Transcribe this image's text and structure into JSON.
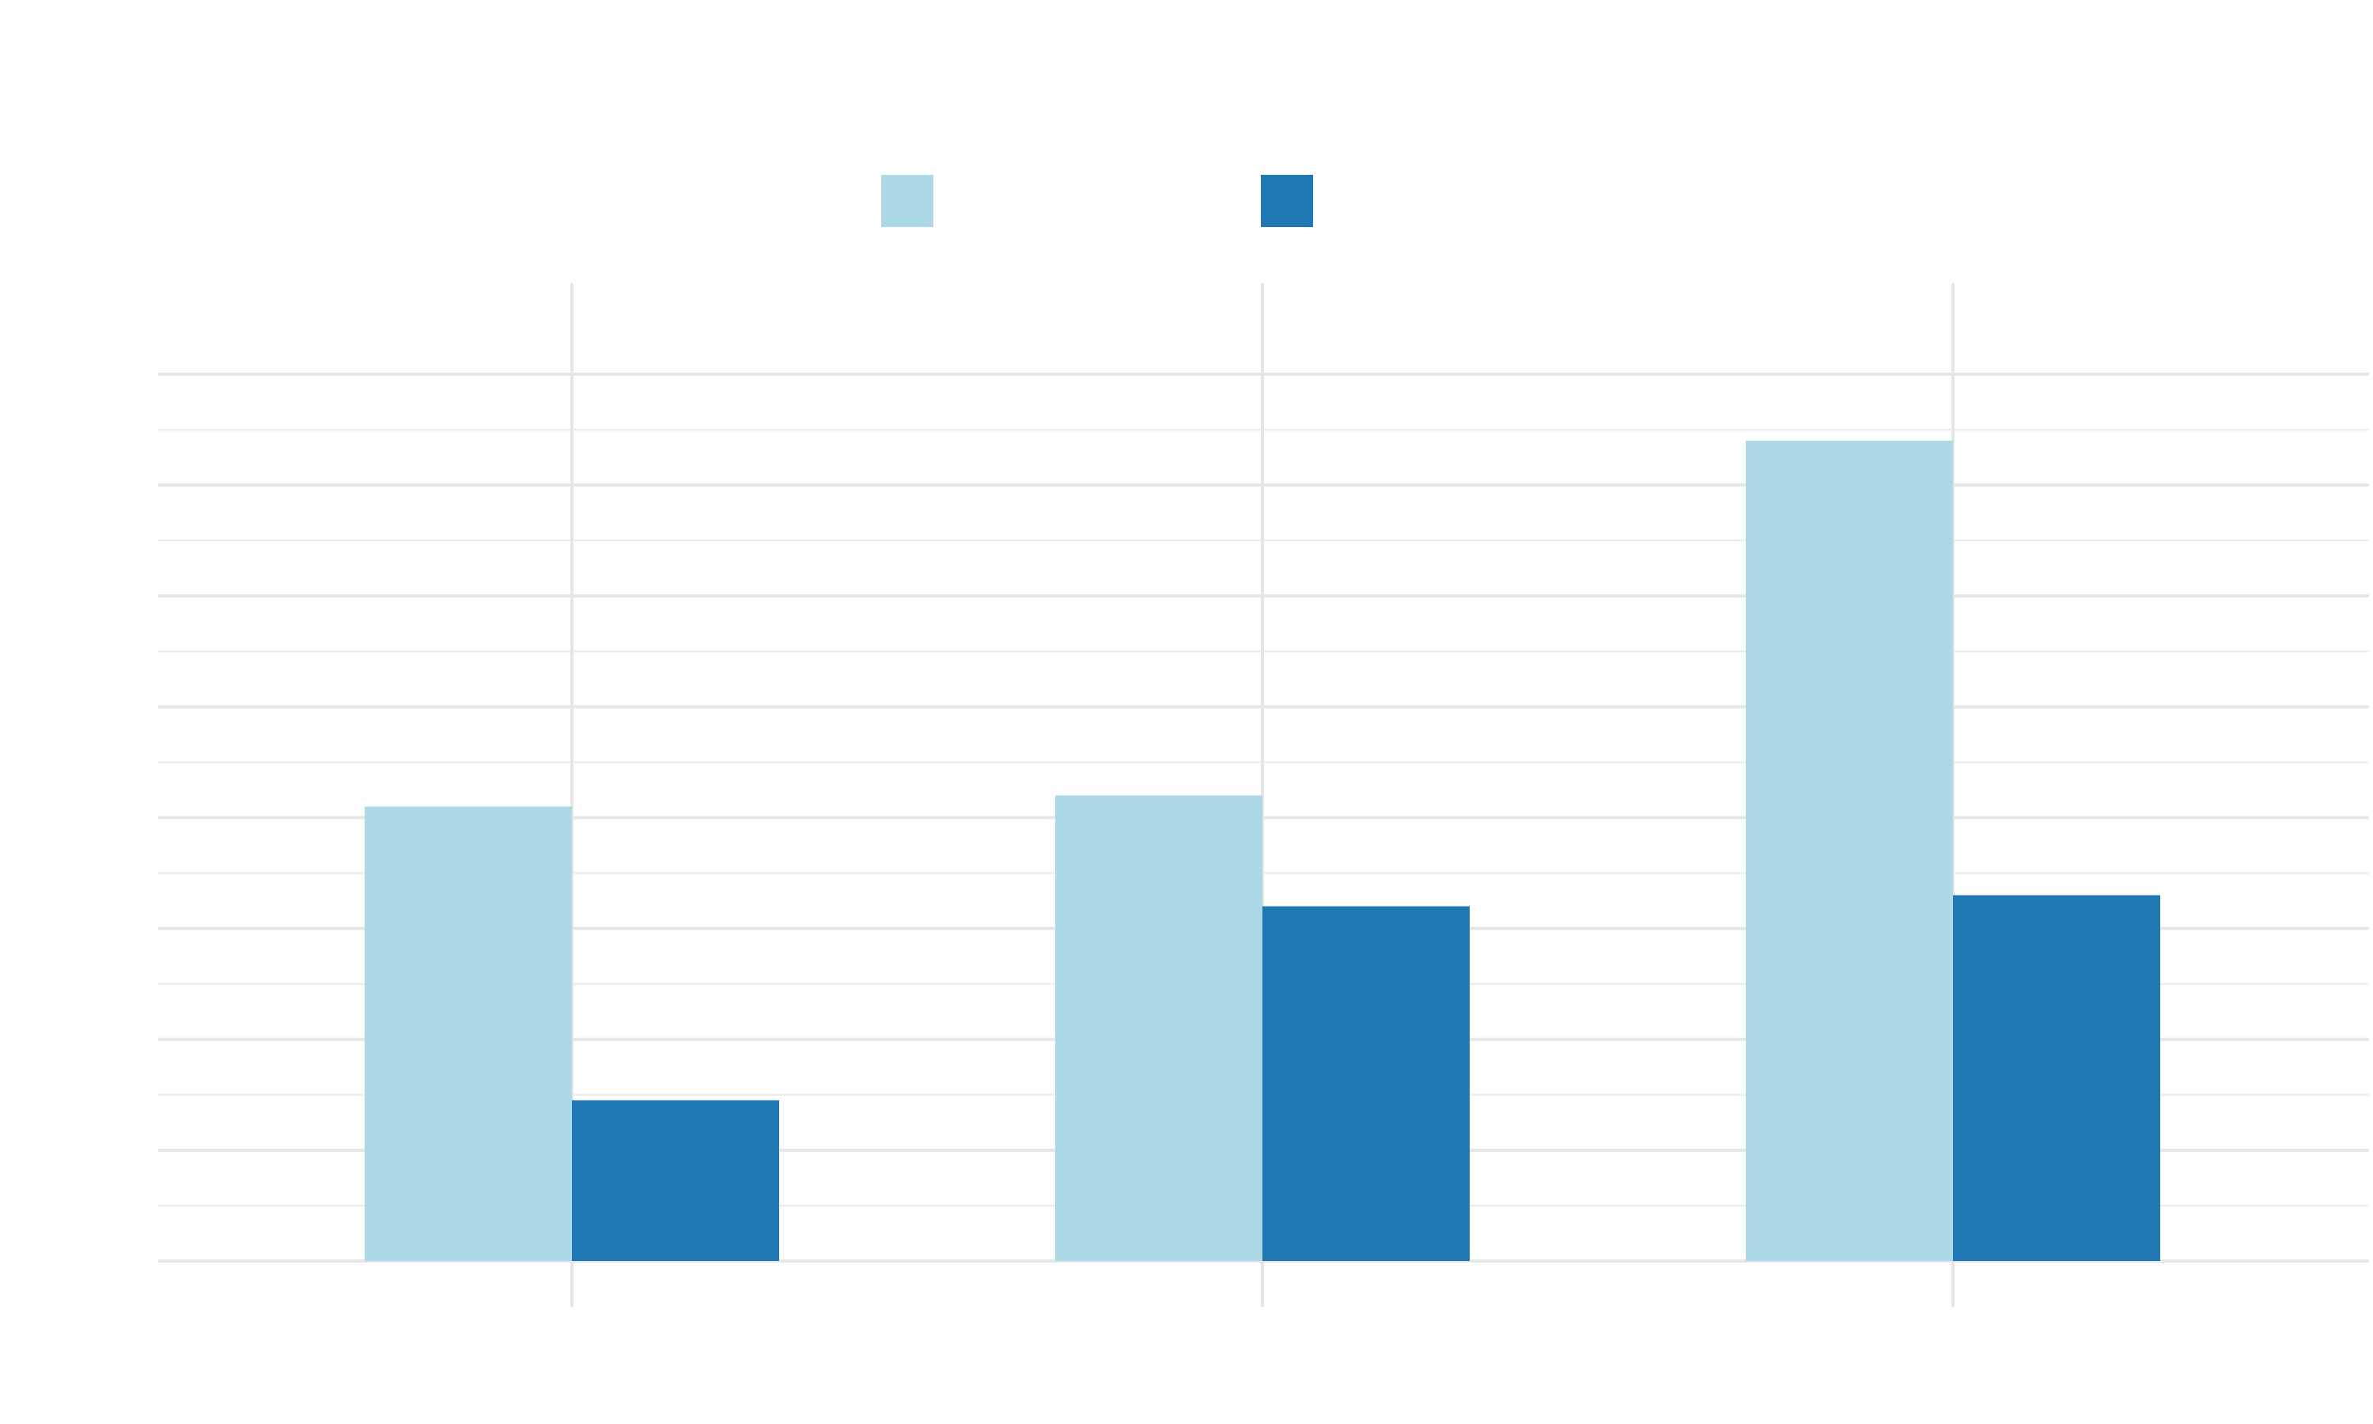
{
  "chart_data": {
    "type": "bar",
    "categories": [
      "",
      "",
      ""
    ],
    "series": [
      {
        "values": [
          4.1,
          4.2,
          7.4
        ],
        "color": "#add8e6"
      },
      {
        "values": [
          1.45,
          3.2,
          3.3
        ],
        "color": "#1f78b4"
      }
    ],
    "ylim": [
      0,
      8
    ],
    "grid": true,
    "legend_position": "top-center",
    "xlabel": "",
    "ylabel": ""
  }
}
